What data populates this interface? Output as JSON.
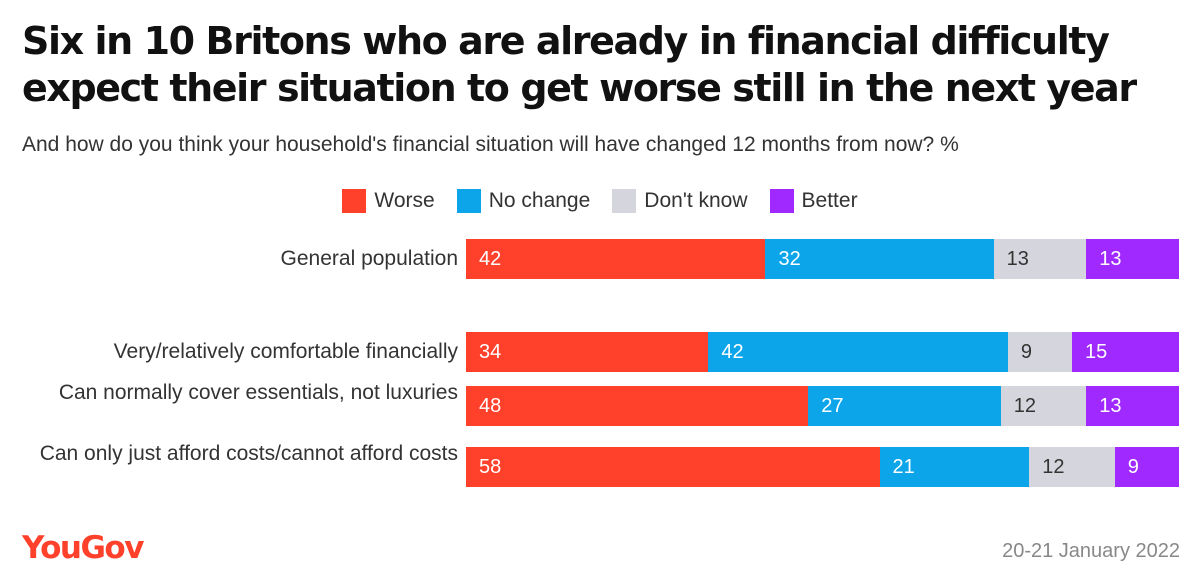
{
  "chart_data": {
    "type": "bar",
    "orientation": "horizontal",
    "stacked": true,
    "title": "Six in 10 Britons who are already in financial difficulty expect their situation to get worse still in the next year",
    "subtitle": "And how do you think your household's financial situation will have changed 12 months from now? %",
    "legend_position": "top-center",
    "grid": false,
    "xlim": [
      0,
      100
    ],
    "categories": [
      "General population",
      "Very/relatively comfortable financially",
      "Can normally cover essentials, not luxuries",
      "Can only just afford costs/cannot afford costs"
    ],
    "series": [
      {
        "name": "Worse",
        "color": "#ff412c",
        "label_color": "#ffffff",
        "values": [
          42,
          34,
          48,
          58
        ]
      },
      {
        "name": "No change",
        "color": "#0ca5ea",
        "label_color": "#ffffff",
        "values": [
          32,
          42,
          27,
          21
        ]
      },
      {
        "name": "Don't know",
        "color": "#d5d6dd",
        "label_color": "#333333",
        "values": [
          13,
          9,
          12,
          12
        ]
      },
      {
        "name": "Better",
        "color": "#9f29ff",
        "label_color": "#ffffff",
        "values": [
          13,
          15,
          13,
          9
        ]
      }
    ]
  },
  "footer": {
    "logo_text": "YouGov",
    "logo_color": "#ff412c",
    "date": "20-21 January 2022"
  }
}
